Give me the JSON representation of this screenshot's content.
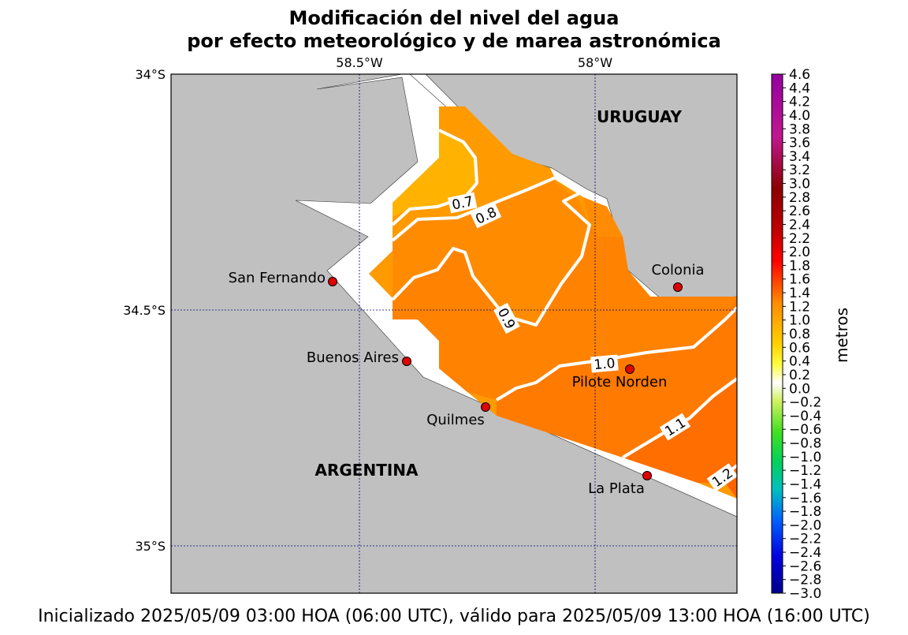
{
  "title": {
    "line1": "Modificación del nivel del agua",
    "line2": "por efecto meteorológico y de marea astronómica"
  },
  "footer": "Inicializado 2025/05/09 03:00 HOA (06:00 UTC), válido para 2025/05/09 13:00 HOA (16:00 UTC)",
  "map": {
    "longitude_labels": [
      "58.5°W",
      "58°W"
    ],
    "latitude_labels": [
      "34°S",
      "34.5°S",
      "35°S"
    ],
    "country_labels": [
      "URUGUAY",
      "ARGENTINA"
    ],
    "cities": [
      {
        "name": "San Fernando"
      },
      {
        "name": "Buenos Aires"
      },
      {
        "name": "Quilmes"
      },
      {
        "name": "Pilote Norden"
      },
      {
        "name": "Colonia"
      },
      {
        "name": "La Plata"
      }
    ],
    "contour_labels": [
      "0.7",
      "0.8",
      "0.9",
      "1.0",
      "1.1",
      "1.2"
    ],
    "colors": {
      "land": "#c0c0c0",
      "water": "#ffffff",
      "city_marker": "#e00000",
      "contour_line": "#ffffff",
      "grid_line": "#000080"
    },
    "fill_levels": [
      {
        "range": "0.6–0.7",
        "color": "#ffb300"
      },
      {
        "range": "0.7–0.8",
        "color": "#ff9a00"
      },
      {
        "range": "0.8–0.9",
        "color": "#ff8c00"
      },
      {
        "range": "0.9–1.0",
        "color": "#ff8200"
      },
      {
        "range": "1.0–1.1",
        "color": "#ff7a00"
      },
      {
        "range": "1.1–1.2",
        "color": "#ff6e00"
      },
      {
        "range": "1.2–1.3",
        "color": "#ff6200"
      }
    ]
  },
  "colorbar": {
    "label": "metros",
    "ticks": [
      "4.6",
      "4.4",
      "4.2",
      "4.0",
      "3.8",
      "3.6",
      "3.4",
      "3.2",
      "3.0",
      "2.8",
      "2.6",
      "2.4",
      "2.2",
      "2.0",
      "1.8",
      "1.6",
      "1.4",
      "1.2",
      "1.0",
      "0.8",
      "0.6",
      "0.4",
      "0.2",
      "0.0",
      "−0.2",
      "−0.4",
      "−0.6",
      "−0.8",
      "−1.0",
      "−1.2",
      "−1.4",
      "−1.6",
      "−1.8",
      "−2.0",
      "−2.2",
      "−2.4",
      "−2.6",
      "−2.8",
      "−3.0"
    ],
    "range": [
      -3.0,
      4.6
    ],
    "gradient": [
      "#9400a0",
      "#c01890",
      "#a01818",
      "#8b0000",
      "#c00000",
      "#ff0000",
      "#ff5a00",
      "#ff8c00",
      "#ffd000",
      "#ffff40",
      "#ffffff",
      "#d0f060",
      "#40e020",
      "#00d060",
      "#00c0c0",
      "#0060ff",
      "#0000e0",
      "#00008b"
    ]
  }
}
